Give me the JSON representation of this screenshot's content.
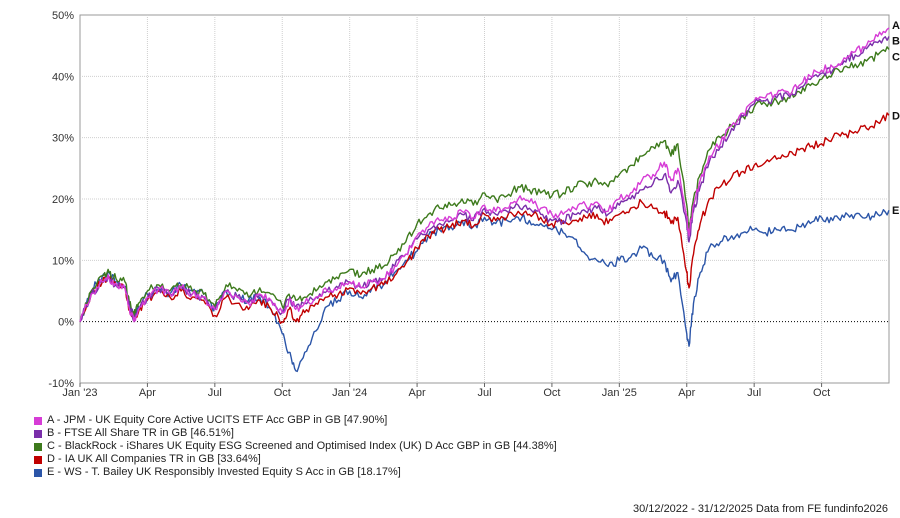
{
  "chart_data": {
    "type": "line",
    "title": "",
    "xlabel": "",
    "ylabel": "",
    "ylim": [
      -10,
      50
    ],
    "y_ticks": [
      -10,
      0,
      10,
      20,
      30,
      40,
      50
    ],
    "y_tick_labels": [
      "-10%",
      "0%",
      "10%",
      "20%",
      "30%",
      "40%",
      "50%"
    ],
    "x_ticks": [
      {
        "label": "Jan '23",
        "month": 0
      },
      {
        "label": "Apr",
        "month": 3
      },
      {
        "label": "Jul",
        "month": 6
      },
      {
        "label": "Oct",
        "month": 9
      },
      {
        "label": "Jan '24",
        "month": 12
      },
      {
        "label": "Apr",
        "month": 15
      },
      {
        "label": "Jul",
        "month": 18
      },
      {
        "label": "Oct",
        "month": 21
      },
      {
        "label": "Jan '25",
        "month": 24
      },
      {
        "label": "Apr",
        "month": 27
      },
      {
        "label": "Jul",
        "month": 30
      },
      {
        "label": "Oct",
        "month": 33
      }
    ],
    "x_range_months": [
      0,
      36
    ],
    "x_unit": "months since 30/12/2022",
    "series": [
      {
        "key": "A",
        "name": "A - JPM - UK Equity Core Active UCITS ETF Acc GBP in GB [47.90%]",
        "color": "#d63cd6",
        "end_label": "A",
        "x": [
          0,
          0.5,
          1,
          1.3,
          1.6,
          2,
          2.2,
          2.4,
          2.6,
          3,
          3.5,
          4,
          4.5,
          5,
          5.5,
          6,
          6.5,
          7,
          7.5,
          8,
          8.5,
          9,
          9.3,
          9.6,
          10,
          10.5,
          11,
          11.5,
          12,
          12.5,
          13,
          13.5,
          14,
          14.5,
          15,
          15.5,
          16,
          16.5,
          17,
          17.5,
          18,
          18.5,
          19,
          19.5,
          20,
          20.5,
          21,
          21.5,
          22,
          22.5,
          23,
          23.5,
          24,
          24.5,
          25,
          25.5,
          26,
          26.3,
          26.6,
          27,
          27.1,
          27.3,
          27.6,
          28,
          28.5,
          29,
          29.5,
          30,
          30.5,
          31,
          31.5,
          32,
          32.5,
          33,
          33.5,
          34,
          34.5,
          35,
          35.5,
          36
        ],
        "values": [
          0,
          4.5,
          6.5,
          7,
          6.2,
          5.5,
          2,
          0,
          2,
          4,
          5.5,
          4.5,
          5.5,
          4.5,
          4,
          2,
          5,
          4,
          3,
          4.5,
          3.5,
          1.5,
          3.5,
          2,
          3,
          4,
          5,
          5.5,
          6.5,
          5.5,
          6.5,
          7,
          9,
          11,
          14,
          15.5,
          16.5,
          17,
          18,
          17,
          19,
          18,
          18.5,
          20,
          19.5,
          18.5,
          17.5,
          17.5,
          18.5,
          19,
          19.5,
          18,
          20,
          21,
          23,
          24,
          26,
          23,
          25,
          17,
          14,
          19,
          23,
          27,
          29,
          32,
          34,
          36,
          36.5,
          37,
          37.5,
          38.5,
          40,
          41,
          41.5,
          43,
          44,
          45,
          46.5,
          47.9
        ]
      },
      {
        "key": "B",
        "name": "B - FTSE All Share TR in GB [46.51%]",
        "color": "#7a2eaa",
        "end_label": "B",
        "x": [
          0,
          0.5,
          1,
          1.3,
          1.6,
          2,
          2.2,
          2.4,
          2.6,
          3,
          3.5,
          4,
          4.5,
          5,
          5.5,
          6,
          6.5,
          7,
          7.5,
          8,
          8.5,
          9,
          9.3,
          9.6,
          10,
          10.5,
          11,
          11.5,
          12,
          12.5,
          13,
          13.5,
          14,
          14.5,
          15,
          15.5,
          16,
          16.5,
          17,
          17.5,
          18,
          18.5,
          19,
          19.5,
          20,
          20.5,
          21,
          21.5,
          22,
          22.5,
          23,
          23.5,
          24,
          24.5,
          25,
          25.5,
          26,
          26.3,
          26.6,
          27,
          27.1,
          27.3,
          27.6,
          28,
          28.5,
          29,
          29.5,
          30,
          30.5,
          31,
          31.5,
          32,
          32.5,
          33,
          33.5,
          34,
          34.5,
          35,
          35.5,
          36
        ],
        "values": [
          0,
          4.5,
          6.5,
          7,
          6,
          5.5,
          2.5,
          0.5,
          2,
          4,
          5.5,
          4.5,
          5.5,
          4.5,
          4,
          2,
          5,
          4,
          3,
          4.5,
          3.5,
          1.5,
          3.5,
          2.5,
          3,
          4,
          5,
          5.5,
          6.5,
          5.5,
          6.5,
          7,
          9,
          11,
          13.5,
          15,
          16,
          16.5,
          17.5,
          16.5,
          18.5,
          17.5,
          18,
          19,
          18.5,
          17.5,
          16.5,
          16.5,
          17.5,
          18,
          18.5,
          17.5,
          19,
          20,
          21.5,
          22.5,
          24,
          21,
          23,
          16,
          13,
          18,
          22,
          26,
          28.5,
          31.5,
          33.5,
          35.5,
          36,
          36.5,
          37,
          38,
          39.5,
          40.5,
          41,
          42.5,
          43.5,
          44.5,
          45.5,
          46.51
        ]
      },
      {
        "key": "C",
        "name": "C - BlackRock - iShares UK Equity ESG Screened and Optimised Index (UK) D Acc GBP in GB [44.38%]",
        "color": "#3d7a1c",
        "end_label": "C",
        "x": [
          0,
          0.5,
          1,
          1.3,
          1.6,
          2,
          2.2,
          2.4,
          2.6,
          3,
          3.5,
          4,
          4.5,
          5,
          5.5,
          6,
          6.5,
          7,
          7.5,
          8,
          8.5,
          9,
          9.3,
          9.6,
          10,
          10.5,
          11,
          11.5,
          12,
          12.5,
          13,
          13.5,
          14,
          14.5,
          15,
          15.5,
          16,
          16.5,
          17,
          17.5,
          18,
          18.5,
          19,
          19.5,
          20,
          20.5,
          21,
          21.5,
          22,
          22.5,
          23,
          23.5,
          24,
          24.5,
          25,
          25.5,
          26,
          26.3,
          26.6,
          27,
          27.1,
          27.3,
          27.6,
          28,
          28.5,
          29,
          29.5,
          30,
          30.5,
          31,
          31.5,
          32,
          32.5,
          33,
          33.5,
          34,
          34.5,
          35,
          35.5,
          36
        ],
        "values": [
          0,
          5,
          7.5,
          8,
          7,
          6.5,
          3,
          1,
          3,
          5,
          6,
          5,
          6,
          5,
          4.5,
          2.5,
          6,
          5,
          4,
          5.5,
          4.5,
          2.5,
          4.5,
          3.5,
          4,
          5,
          6.5,
          7,
          8.5,
          7.5,
          8.5,
          9,
          11,
          13,
          16,
          17.5,
          18.5,
          19,
          20,
          19,
          21,
          20,
          20.5,
          22,
          21.5,
          21,
          20.5,
          21,
          22,
          22.5,
          23,
          22,
          24,
          25.5,
          27,
          28.5,
          29.5,
          27,
          29,
          19,
          15,
          20,
          24,
          28,
          30,
          32,
          33.5,
          35,
          35.5,
          36,
          36.5,
          37.5,
          38.5,
          39.5,
          40.5,
          41.5,
          42,
          42.5,
          43.5,
          44.38
        ]
      },
      {
        "key": "D",
        "name": "D - IA UK All Companies TR in GB [33.64%]",
        "color": "#c00000",
        "end_label": "D",
        "x": [
          0,
          0.5,
          1,
          1.3,
          1.6,
          2,
          2.2,
          2.4,
          2.6,
          3,
          3.5,
          4,
          4.5,
          5,
          5.5,
          6,
          6.5,
          7,
          7.5,
          8,
          8.5,
          9,
          9.3,
          9.6,
          10,
          10.5,
          11,
          11.5,
          12,
          12.5,
          13,
          13.5,
          14,
          14.5,
          15,
          15.5,
          16,
          16.5,
          17,
          17.5,
          18,
          18.5,
          19,
          19.5,
          20,
          20.5,
          21,
          21.5,
          22,
          22.5,
          23,
          23.5,
          24,
          24.5,
          25,
          25.5,
          26,
          26.3,
          26.6,
          27,
          27.1,
          27.3,
          27.6,
          28,
          28.5,
          29,
          29.5,
          30,
          30.5,
          31,
          31.5,
          32,
          32.5,
          33,
          33.5,
          34,
          34.5,
          35,
          35.5,
          36
        ],
        "values": [
          0,
          4.5,
          6.5,
          7,
          6,
          5.5,
          2,
          0.5,
          1.5,
          3.5,
          5,
          4,
          5,
          4,
          3.5,
          1,
          4,
          3,
          2,
          3.5,
          2,
          0,
          2,
          0,
          1.5,
          3,
          4,
          4.5,
          5.5,
          4.5,
          5.5,
          6,
          7.5,
          9.5,
          12,
          14,
          15,
          15.5,
          16.5,
          15.5,
          17.5,
          16.5,
          17,
          18,
          17.5,
          17,
          16,
          16,
          16.5,
          17,
          17.5,
          16,
          17.5,
          18.5,
          19.5,
          18.5,
          18,
          16,
          17,
          8,
          5.5,
          11,
          16,
          20,
          22,
          23.5,
          24.5,
          25.5,
          26,
          26.5,
          27,
          28,
          28.5,
          29,
          30,
          30.5,
          31,
          31.5,
          32.5,
          33.64
        ]
      },
      {
        "key": "E",
        "name": "E - WS - T. Bailey UK Responsibly Invested Equity S Acc in GB [18.17%]",
        "color": "#2b55a8",
        "end_label": "E",
        "x": [
          0,
          0.5,
          1,
          1.3,
          1.6,
          2,
          2.2,
          2.4,
          2.6,
          3,
          3.5,
          4,
          4.5,
          5,
          5.5,
          6,
          6.5,
          7,
          7.5,
          8,
          8.5,
          9,
          9.3,
          9.6,
          10,
          10.5,
          11,
          11.5,
          12,
          12.5,
          13,
          13.5,
          14,
          14.5,
          15,
          15.5,
          16,
          16.5,
          17,
          17.5,
          18,
          18.5,
          19,
          19.5,
          20,
          20.5,
          21,
          21.5,
          22,
          22.5,
          23,
          23.5,
          24,
          24.5,
          25,
          25.5,
          26,
          26.3,
          26.6,
          27,
          27.1,
          27.3,
          27.6,
          28,
          28.5,
          29,
          29.5,
          30,
          30.5,
          31,
          31.5,
          32,
          32.5,
          33,
          33.5,
          34,
          34.5,
          35,
          35.5,
          36
        ],
        "values": [
          0,
          5,
          7.5,
          8,
          6.5,
          5.5,
          3,
          1,
          2.5,
          4.5,
          5.5,
          4.5,
          6,
          5,
          4.5,
          2,
          5,
          4,
          3.5,
          4,
          2,
          -2,
          -5,
          -8,
          -5,
          -1.5,
          2.5,
          3.5,
          5,
          4,
          5.5,
          6,
          8,
          10,
          11.5,
          14,
          15,
          15.5,
          16.5,
          15.5,
          17,
          16,
          16.5,
          17,
          16.5,
          16,
          15,
          14.5,
          13.5,
          11,
          10,
          9,
          10,
          10.5,
          12,
          10.5,
          10,
          6.5,
          8,
          -2,
          -4,
          3,
          8,
          12,
          13,
          14,
          14.5,
          15,
          14.5,
          15,
          15,
          15.5,
          16,
          17,
          16.5,
          17,
          17.5,
          17,
          17.5,
          18.17
        ]
      }
    ]
  },
  "footer": {
    "text": "30/12/2022 - 31/12/2025 Data from FE fundinfo2026"
  }
}
